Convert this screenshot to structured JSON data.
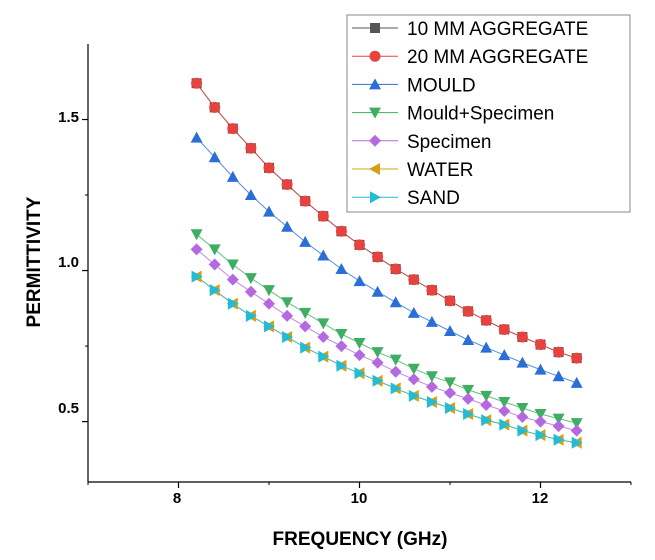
{
  "chart_data": {
    "type": "line",
    "title": "",
    "xlabel": "FREQUENCY (GHz)",
    "ylabel": "PERMITTIVITY",
    "xlim": [
      7,
      13
    ],
    "ylim": [
      0.3,
      1.75
    ],
    "xticks": [
      8,
      10,
      12
    ],
    "yticks": [
      0.5,
      1.0,
      1.5
    ],
    "xtick_labels": [
      "8",
      "10",
      "12"
    ],
    "ytick_labels": [
      "0.5",
      "1.0",
      "1.5"
    ],
    "grid": false,
    "legend_position": "top-right",
    "x": [
      8.2,
      8.4,
      8.6,
      8.8,
      9.0,
      9.2,
      9.4,
      9.6,
      9.8,
      10.0,
      10.2,
      10.4,
      10.6,
      10.8,
      11.0,
      11.2,
      11.4,
      11.6,
      11.8,
      12.0,
      12.2,
      12.4
    ],
    "series": [
      {
        "name": "10 MM AGGREGATE",
        "marker": "square",
        "color": "#555555",
        "values": [
          1.62,
          1.54,
          1.47,
          1.405,
          1.34,
          1.285,
          1.23,
          1.18,
          1.13,
          1.085,
          1.045,
          1.005,
          0.97,
          0.935,
          0.9,
          0.865,
          0.835,
          0.805,
          0.78,
          0.755,
          0.73,
          0.71
        ]
      },
      {
        "name": "20 MM AGGREGATE",
        "marker": "circle",
        "color": "#e8423e",
        "values": [
          1.62,
          1.54,
          1.47,
          1.405,
          1.34,
          1.285,
          1.23,
          1.18,
          1.13,
          1.085,
          1.045,
          1.005,
          0.97,
          0.935,
          0.9,
          0.865,
          0.835,
          0.805,
          0.78,
          0.755,
          0.73,
          0.71
        ]
      },
      {
        "name": "MOULD",
        "marker": "triangle-up",
        "color": "#2b6fd6",
        "values": [
          1.44,
          1.375,
          1.31,
          1.25,
          1.195,
          1.145,
          1.095,
          1.05,
          1.005,
          0.965,
          0.93,
          0.895,
          0.86,
          0.83,
          0.8,
          0.77,
          0.745,
          0.72,
          0.695,
          0.672,
          0.65,
          0.628
        ]
      },
      {
        "name": "Mould+Specimen",
        "marker": "triangle-down",
        "color": "#3fae63",
        "values": [
          1.12,
          1.07,
          1.02,
          0.975,
          0.935,
          0.895,
          0.86,
          0.825,
          0.79,
          0.76,
          0.73,
          0.705,
          0.675,
          0.65,
          0.63,
          0.605,
          0.585,
          0.565,
          0.545,
          0.525,
          0.51,
          0.495
        ]
      },
      {
        "name": "Specimen",
        "marker": "diamond",
        "color": "#b469e0",
        "values": [
          1.07,
          1.02,
          0.97,
          0.93,
          0.89,
          0.85,
          0.815,
          0.78,
          0.75,
          0.72,
          0.695,
          0.665,
          0.64,
          0.615,
          0.595,
          0.575,
          0.555,
          0.535,
          0.515,
          0.5,
          0.485,
          0.47
        ]
      },
      {
        "name": "WATER",
        "marker": "triangle-left",
        "color": "#d4a017",
        "values": [
          0.98,
          0.935,
          0.89,
          0.85,
          0.815,
          0.78,
          0.745,
          0.715,
          0.685,
          0.66,
          0.635,
          0.61,
          0.585,
          0.565,
          0.545,
          0.525,
          0.505,
          0.49,
          0.47,
          0.455,
          0.44,
          0.43
        ]
      },
      {
        "name": "SAND",
        "marker": "triangle-right",
        "color": "#22bcd6",
        "values": [
          0.98,
          0.935,
          0.89,
          0.85,
          0.815,
          0.78,
          0.745,
          0.715,
          0.685,
          0.66,
          0.635,
          0.61,
          0.585,
          0.565,
          0.545,
          0.525,
          0.505,
          0.49,
          0.47,
          0.455,
          0.44,
          0.43
        ]
      }
    ]
  }
}
